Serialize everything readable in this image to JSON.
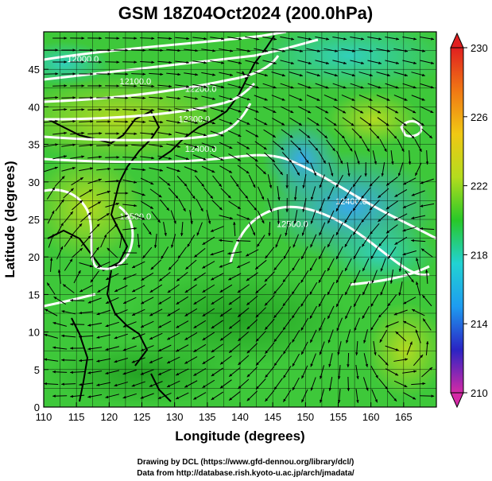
{
  "chart_data": {
    "type": "heatmap",
    "title": "GSM 18Z04Oct2024 (200.0hPa)",
    "xlabel": "Longitude (degrees)",
    "ylabel": "Latitude  (degrees)",
    "xlim": [
      110,
      170
    ],
    "ylim": [
      0,
      50
    ],
    "xticks": [
      110,
      115,
      120,
      125,
      130,
      135,
      140,
      145,
      150,
      155,
      160,
      165
    ],
    "yticks": [
      0,
      5,
      10,
      15,
      20,
      25,
      30,
      35,
      40,
      45
    ],
    "grid": true,
    "colorbar": {
      "min": 210,
      "max": 230,
      "ticks": [
        210,
        214,
        218,
        222,
        226,
        230
      ],
      "colors": [
        "#d42aa6",
        "#2a24c4",
        "#1e9cf0",
        "#22d2d2",
        "#28c828",
        "#b4dc1e",
        "#f0c814",
        "#f07814",
        "#e02020"
      ]
    },
    "contour_labels": [
      {
        "text": "12000.0",
        "lon": 116,
        "lat": 46
      },
      {
        "text": "12100.0",
        "lon": 124,
        "lat": 43
      },
      {
        "text": "12200.0",
        "lon": 134,
        "lat": 42
      },
      {
        "text": "12300.0",
        "lon": 133,
        "lat": 38
      },
      {
        "text": "12400.0",
        "lon": 134,
        "lat": 34
      },
      {
        "text": "12400.0",
        "lon": 157,
        "lat": 27
      },
      {
        "text": "12500.0",
        "lon": 124,
        "lat": 25
      },
      {
        "text": "12500.0",
        "lon": 148,
        "lat": 24
      }
    ]
  },
  "footer": {
    "line1": "Drawing by DCL (https://www.gfd-dennou.org/library/dcl/)",
    "line2": "Data from http://database.rish.kyoto-u.ac.jp/arch/jmadata/"
  }
}
